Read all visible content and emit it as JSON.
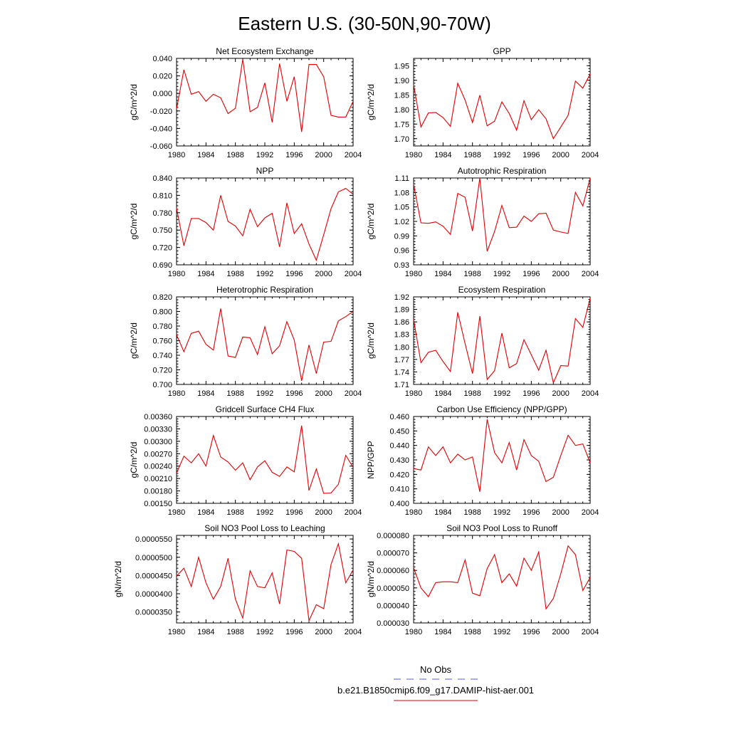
{
  "figure": {
    "title": "Eastern U.S. (30-50N,90-70W)",
    "line_color": "#e00000",
    "obs_line_color": "#5a5ae6"
  },
  "legend": {
    "obs_label": "No Obs",
    "model_label": "b.e21.B1850cmip6.f09_g17.DAMIP-hist-aer.001"
  },
  "chart_data": [
    {
      "type": "line",
      "title": "Net Ecosystem Exchange",
      "ylabel": "gC/m^2/d",
      "xlim": [
        1980,
        2004
      ],
      "ylim": [
        -0.06,
        0.04
      ],
      "x_ticks": [
        "1980",
        "1984",
        "1988",
        "1992",
        "1996",
        "2000",
        "2004"
      ],
      "y_ticks": [
        "0.040",
        "0.020",
        "0.000",
        "-0.020",
        "-0.040",
        "-0.060"
      ],
      "x": [
        1980,
        1981,
        1982,
        1983,
        1984,
        1985,
        1986,
        1987,
        1988,
        1989,
        1990,
        1991,
        1992,
        1993,
        1994,
        1995,
        1996,
        1997,
        1998,
        1999,
        2000,
        2001,
        2002,
        2003,
        2004
      ],
      "series": [
        {
          "values": [
            -0.018,
            0.027,
            -0.001,
            0.002,
            -0.009,
            -0.001,
            -0.005,
            -0.023,
            -0.017,
            0.039,
            -0.021,
            -0.016,
            0.012,
            -0.033,
            0.034,
            -0.009,
            0.019,
            -0.044,
            0.033,
            0.033,
            0.019,
            -0.025,
            -0.027,
            -0.027,
            -0.009
          ]
        }
      ]
    },
    {
      "type": "line",
      "title": "GPP",
      "ylabel": "gC/m^2/d",
      "xlim": [
        1980,
        2004
      ],
      "ylim": [
        1.675,
        1.975
      ],
      "x_ticks": [
        "1980",
        "1984",
        "1988",
        "1992",
        "1996",
        "2000",
        "2004"
      ],
      "y_ticks": [
        "1.95",
        "1.90",
        "1.85",
        "1.80",
        "1.75",
        "1.70"
      ],
      "x": [
        1980,
        1981,
        1982,
        1983,
        1984,
        1985,
        1986,
        1987,
        1988,
        1989,
        1990,
        1991,
        1992,
        1993,
        1994,
        1995,
        1996,
        1997,
        1998,
        1999,
        2000,
        2001,
        2002,
        2003,
        2004
      ],
      "series": [
        {
          "values": [
            1.885,
            1.74,
            1.788,
            1.79,
            1.772,
            1.742,
            1.89,
            1.832,
            1.755,
            1.849,
            1.744,
            1.76,
            1.826,
            1.786,
            1.729,
            1.83,
            1.765,
            1.799,
            1.768,
            1.7,
            1.74,
            1.78,
            1.897,
            1.873,
            1.922
          ]
        }
      ]
    },
    {
      "type": "line",
      "title": "NPP",
      "ylabel": "gC/m^2/d",
      "xlim": [
        1980,
        2004
      ],
      "ylim": [
        0.69,
        0.84
      ],
      "x_ticks": [
        "1980",
        "1984",
        "1988",
        "1992",
        "1996",
        "2000",
        "2004"
      ],
      "y_ticks": [
        "0.840",
        "0.810",
        "0.780",
        "0.750",
        "0.720",
        "0.690"
      ],
      "x": [
        1980,
        1981,
        1982,
        1983,
        1984,
        1985,
        1986,
        1987,
        1988,
        1989,
        1990,
        1991,
        1992,
        1993,
        1994,
        1995,
        1996,
        1997,
        1998,
        1999,
        2000,
        2001,
        2002,
        2003,
        2004
      ],
      "series": [
        {
          "values": [
            0.788,
            0.723,
            0.77,
            0.77,
            0.763,
            0.75,
            0.81,
            0.765,
            0.757,
            0.74,
            0.786,
            0.756,
            0.771,
            0.779,
            0.721,
            0.797,
            0.744,
            0.761,
            0.726,
            0.698,
            0.742,
            0.787,
            0.816,
            0.822,
            0.812
          ]
        }
      ]
    },
    {
      "type": "line",
      "title": "Autotrophic Respiration",
      "ylabel": "gC/m^2/d",
      "xlim": [
        1980,
        2004
      ],
      "ylim": [
        0.93,
        1.11
      ],
      "x_ticks": [
        "1980",
        "1984",
        "1988",
        "1992",
        "1996",
        "2000",
        "2004"
      ],
      "y_ticks": [
        "1.11",
        "1.08",
        "1.05",
        "1.02",
        "0.99",
        "0.96",
        "0.93"
      ],
      "x": [
        1980,
        1981,
        1982,
        1983,
        1984,
        1985,
        1986,
        1987,
        1988,
        1989,
        1990,
        1991,
        1992,
        1993,
        1994,
        1995,
        1996,
        1997,
        1998,
        1999,
        2000,
        2001,
        2002,
        2003,
        2004
      ],
      "series": [
        {
          "values": [
            1.097,
            1.017,
            1.016,
            1.019,
            1.01,
            0.993,
            1.078,
            1.07,
            1.0,
            1.11,
            0.958,
            0.999,
            1.053,
            1.007,
            1.008,
            1.031,
            1.02,
            1.036,
            1.037,
            1.002,
            0.998,
            0.995,
            1.08,
            1.052,
            1.11
          ]
        }
      ]
    },
    {
      "type": "line",
      "title": "Heterotrophic Respiration",
      "ylabel": "gC/m^2/d",
      "xlim": [
        1980,
        2004
      ],
      "ylim": [
        0.7,
        0.82
      ],
      "x_ticks": [
        "1980",
        "1984",
        "1988",
        "1992",
        "1996",
        "2000",
        "2004"
      ],
      "y_ticks": [
        "0.820",
        "0.800",
        "0.780",
        "0.760",
        "0.740",
        "0.720",
        "0.700"
      ],
      "x": [
        1980,
        1981,
        1982,
        1983,
        1984,
        1985,
        1986,
        1987,
        1988,
        1989,
        1990,
        1991,
        1992,
        1993,
        1994,
        1995,
        1996,
        1997,
        1998,
        1999,
        2000,
        2001,
        2002,
        2003,
        2004
      ],
      "series": [
        {
          "values": [
            0.768,
            0.745,
            0.77,
            0.773,
            0.755,
            0.747,
            0.804,
            0.739,
            0.737,
            0.765,
            0.764,
            0.741,
            0.779,
            0.742,
            0.753,
            0.786,
            0.761,
            0.705,
            0.754,
            0.715,
            0.758,
            0.759,
            0.787,
            0.793,
            0.8
          ]
        }
      ]
    },
    {
      "type": "line",
      "title": "Ecosystem Respiration",
      "ylabel": "gC/m^2/d",
      "xlim": [
        1980,
        2004
      ],
      "ylim": [
        1.71,
        1.92
      ],
      "x_ticks": [
        "1980",
        "1984",
        "1988",
        "1992",
        "1996",
        "2000",
        "2004"
      ],
      "y_ticks": [
        "1.92",
        "1.89",
        "1.86",
        "1.83",
        "1.80",
        "1.77",
        "1.74",
        "1.71"
      ],
      "x": [
        1980,
        1981,
        1982,
        1983,
        1984,
        1985,
        1986,
        1987,
        1988,
        1989,
        1990,
        1991,
        1992,
        1993,
        1994,
        1995,
        1996,
        1997,
        1998,
        1999,
        2000,
        2001,
        2002,
        2003,
        2004
      ],
      "series": [
        {
          "values": [
            1.866,
            1.762,
            1.787,
            1.792,
            1.765,
            1.741,
            1.883,
            1.808,
            1.736,
            1.874,
            1.722,
            1.743,
            1.833,
            1.75,
            1.76,
            1.817,
            1.781,
            1.744,
            1.792,
            1.714,
            1.755,
            1.754,
            1.868,
            1.847,
            1.917
          ]
        }
      ]
    },
    {
      "type": "line",
      "title": "Gridcell Surface CH4 Flux",
      "ylabel": "gC/m^2/d",
      "xlim": [
        1980,
        2004
      ],
      "ylim": [
        0.0015,
        0.0036
      ],
      "x_ticks": [
        "1980",
        "1984",
        "1988",
        "1992",
        "1996",
        "2000",
        "2004"
      ],
      "y_ticks": [
        "0.00360",
        "0.00330",
        "0.00300",
        "0.00270",
        "0.00240",
        "0.00210",
        "0.00180",
        "0.00150"
      ],
      "x": [
        1980,
        1981,
        1982,
        1983,
        1984,
        1985,
        1986,
        1987,
        1988,
        1989,
        1990,
        1991,
        1992,
        1993,
        1994,
        1995,
        1996,
        1997,
        1998,
        1999,
        2000,
        2001,
        2002,
        2003,
        2004
      ],
      "series": [
        {
          "values": [
            0.00223,
            0.00264,
            0.00248,
            0.0027,
            0.0024,
            0.00314,
            0.00262,
            0.0025,
            0.0023,
            0.00248,
            0.00207,
            0.00238,
            0.00253,
            0.00225,
            0.00215,
            0.00238,
            0.00226,
            0.00338,
            0.00181,
            0.00233,
            0.00174,
            0.00175,
            0.00196,
            0.00266,
            0.00237
          ]
        }
      ]
    },
    {
      "type": "line",
      "title": "Carbon Use Efficiency (NPP/GPP)",
      "ylabel": "NPP/GPP",
      "xlim": [
        1980,
        2004
      ],
      "ylim": [
        0.4,
        0.46
      ],
      "x_ticks": [
        "1980",
        "1984",
        "1988",
        "1992",
        "1996",
        "2000",
        "2004"
      ],
      "y_ticks": [
        "0.460",
        "0.450",
        "0.440",
        "0.430",
        "0.420",
        "0.410",
        "0.400"
      ],
      "x": [
        1980,
        1981,
        1982,
        1983,
        1984,
        1985,
        1986,
        1987,
        1988,
        1989,
        1990,
        1991,
        1992,
        1993,
        1994,
        1995,
        1996,
        1997,
        1998,
        1999,
        2000,
        2001,
        2002,
        2003,
        2004
      ],
      "series": [
        {
          "values": [
            0.424,
            0.423,
            0.439,
            0.433,
            0.439,
            0.428,
            0.434,
            0.43,
            0.432,
            0.408,
            0.458,
            0.435,
            0.428,
            0.442,
            0.423,
            0.444,
            0.433,
            0.429,
            0.415,
            0.418,
            0.433,
            0.447,
            0.44,
            0.441,
            0.428
          ]
        }
      ]
    },
    {
      "type": "line",
      "title": "Soil NO3 Pool Loss to Leaching",
      "ylabel": "gN/m^2/d",
      "xlim": [
        1980,
        2004
      ],
      "ylim": [
        3.2e-05,
        5.6e-05
      ],
      "x_ticks": [
        "1980",
        "1984",
        "1988",
        "1992",
        "1996",
        "2000",
        "2004"
      ],
      "y_ticks": [
        "0.0000550",
        "0.0000500",
        "0.0000450",
        "0.0000400",
        "0.0000350"
      ],
      "x": [
        1980,
        1981,
        1982,
        1983,
        1984,
        1985,
        1986,
        1987,
        1988,
        1989,
        1990,
        1991,
        1992,
        1993,
        1994,
        1995,
        1996,
        1997,
        1998,
        1999,
        2000,
        2001,
        2002,
        2003,
        2004
      ],
      "series": [
        {
          "values": [
            4.48e-05,
            4.7e-05,
            4.2e-05,
            5e-05,
            4.3e-05,
            3.85e-05,
            4.2e-05,
            4.97e-05,
            3.85e-05,
            3.33e-05,
            4.63e-05,
            4.2e-05,
            4.16e-05,
            4.57e-05,
            3.72e-05,
            5.2e-05,
            5.16e-05,
            4.97e-05,
            3.26e-05,
            3.7e-05,
            3.59e-05,
            4.8e-05,
            5.37e-05,
            4.3e-05,
            4.65e-05
          ]
        }
      ]
    },
    {
      "type": "line",
      "title": "Soil NO3 Pool Loss to Runoff",
      "ylabel": "gN/m^2/d",
      "xlim": [
        1980,
        2004
      ],
      "ylim": [
        3e-05,
        8e-05
      ],
      "x_ticks": [
        "1980",
        "1984",
        "1988",
        "1992",
        "1996",
        "2000",
        "2004"
      ],
      "y_ticks": [
        "0.000080",
        "0.000070",
        "0.000060",
        "0.000050",
        "0.000040",
        "0.000030"
      ],
      "x": [
        1980,
        1981,
        1982,
        1983,
        1984,
        1985,
        1986,
        1987,
        1988,
        1989,
        1990,
        1991,
        1992,
        1993,
        1994,
        1995,
        1996,
        1997,
        1998,
        1999,
        2000,
        2001,
        2002,
        2003,
        2004
      ],
      "series": [
        {
          "values": [
            6.15e-05,
            5e-05,
            4.5e-05,
            5.3e-05,
            5.35e-05,
            5.35e-05,
            5.3e-05,
            6.6e-05,
            4.7e-05,
            4.55e-05,
            6.1e-05,
            6.9e-05,
            5.3e-05,
            5.8e-05,
            5.1e-05,
            6.7e-05,
            6e-05,
            7.05e-05,
            3.8e-05,
            4.4e-05,
            5.8e-05,
            7.4e-05,
            6.9e-05,
            4.85e-05,
            5.6e-05
          ]
        }
      ]
    }
  ]
}
